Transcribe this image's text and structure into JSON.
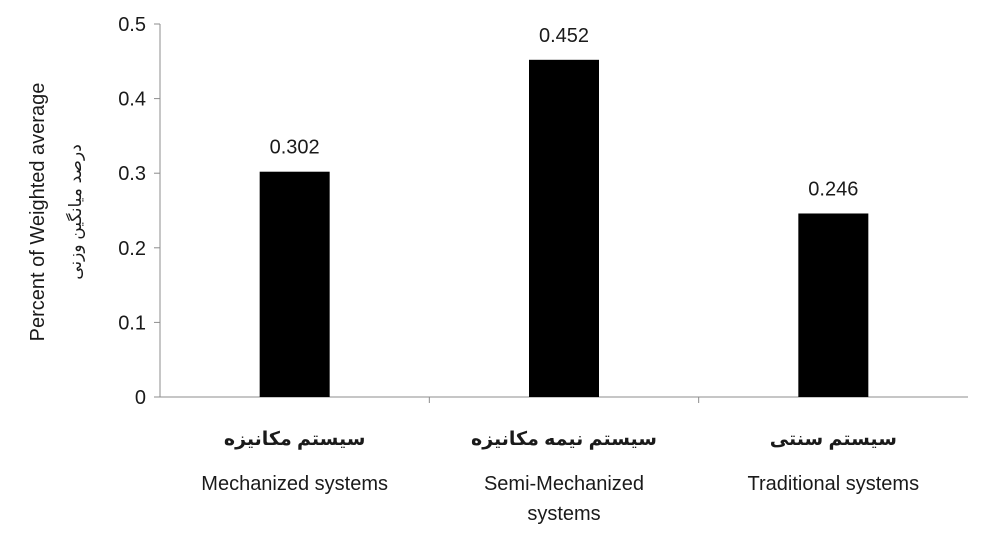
{
  "chart_data": {
    "type": "bar",
    "ylabel": "Percent of Weighted average",
    "ylabel_fa": "درصد میانگین وزنی",
    "categories": [
      {
        "fa": "سیستم مکانیزه",
        "en": [
          "Mechanized systems"
        ]
      },
      {
        "fa": "سیستم نیمه مکانیزه",
        "en": [
          "Semi-Mechanized",
          "systems"
        ]
      },
      {
        "fa": "سیستم سنتی",
        "en": [
          "Traditional systems"
        ]
      }
    ],
    "values": [
      0.302,
      0.452,
      0.246
    ],
    "data_labels": [
      "0.302",
      "0.452",
      "0.246"
    ],
    "yticks": [
      {
        "value": 0,
        "label": "0"
      },
      {
        "value": 0.1,
        "label": "0.1"
      },
      {
        "value": 0.2,
        "label": "0.2"
      },
      {
        "value": 0.3,
        "label": "0.3"
      },
      {
        "value": 0.4,
        "label": "0.4"
      },
      {
        "value": 0.5,
        "label": "0.5"
      }
    ],
    "ylim": [
      0,
      0.5
    ],
    "grid": false,
    "bar_color": "#000000",
    "axis_color": "#8c8c8c"
  }
}
